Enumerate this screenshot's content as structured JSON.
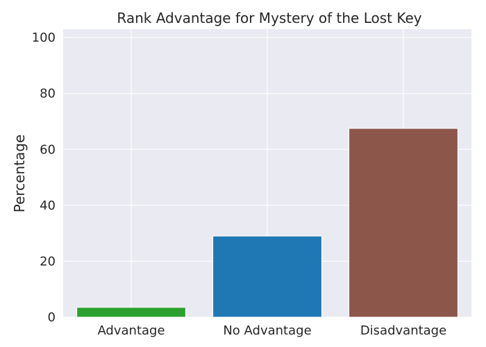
{
  "chart_data": {
    "type": "bar",
    "title": "Rank Advantage for Mystery of the Lost Key",
    "xlabel": "",
    "ylabel": "Percentage",
    "categories": [
      "Advantage",
      "No Advantage",
      "Disadvantage"
    ],
    "values": [
      3.5,
      29.0,
      67.5
    ],
    "colors": [
      "#2ca02c",
      "#1f77b4",
      "#8c564b"
    ],
    "ylim": [
      0,
      103
    ],
    "yticks": [
      0,
      20,
      40,
      60,
      80,
      100
    ],
    "grid": true,
    "background": "#eaeaf2",
    "grid_color": "#ffffff"
  }
}
